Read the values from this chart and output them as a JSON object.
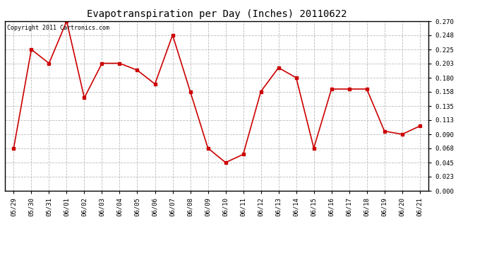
{
  "title": "Evapotranspiration per Day (Inches) 20110622",
  "copyright_text": "Copyright 2011 Cartronics.com",
  "dates": [
    "05/29",
    "05/30",
    "05/31",
    "06/01",
    "06/02",
    "06/03",
    "06/04",
    "06/05",
    "06/06",
    "06/07",
    "06/08",
    "06/09",
    "06/10",
    "06/11",
    "06/12",
    "06/13",
    "06/14",
    "06/15",
    "06/16",
    "06/17",
    "06/18",
    "06/19",
    "06/20",
    "06/21"
  ],
  "values": [
    0.068,
    0.225,
    0.203,
    0.27,
    0.148,
    0.203,
    0.203,
    0.192,
    0.17,
    0.248,
    0.158,
    0.068,
    0.045,
    0.058,
    0.158,
    0.196,
    0.18,
    0.068,
    0.162,
    0.162,
    0.162,
    0.095,
    0.09,
    0.103
  ],
  "line_color": "#cc0000",
  "marker": "s",
  "marker_size": 2.5,
  "ylim": [
    0.0,
    0.27
  ],
  "yticks": [
    0.0,
    0.023,
    0.045,
    0.068,
    0.09,
    0.113,
    0.135,
    0.158,
    0.18,
    0.203,
    0.225,
    0.248,
    0.27
  ],
  "grid_color": "#bbbbbb",
  "background_color": "#ffffff",
  "title_fontsize": 10,
  "tick_fontsize": 6.5,
  "copyright_fontsize": 6
}
